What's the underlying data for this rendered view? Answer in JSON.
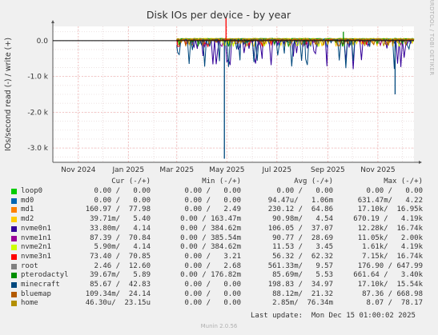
{
  "chart_data": {
    "type": "line",
    "title": "Disk IOs per device - by year",
    "ylabel": "IOs/second read (-) / write (+)",
    "xlabel": "",
    "x_ticks": [
      "Nov 2024",
      "Jan 2025",
      "Mar 2025",
      "May 2025",
      "Jul 2025",
      "Sep 2025",
      "Nov 2025"
    ],
    "y_ticks": [
      0.0,
      -1000,
      -2000,
      -3000
    ],
    "y_tick_labels": [
      "0.0",
      "-1.0 k",
      "-2.0 k",
      "-3.0 k"
    ],
    "ylim": [
      -3400,
      400
    ],
    "xlim": [
      "2024-10-01",
      "2025-12-15"
    ],
    "grid": true,
    "data_start": "2025-03-01",
    "notable_points": [
      {
        "x": "2025-04-28",
        "y": -3300,
        "label": "nvme0n1 min"
      },
      {
        "x": "2025-04-30",
        "y": 650,
        "label": "write spike"
      },
      {
        "x": "2025-09-20",
        "y": 250,
        "label": "pterodactyl write spike"
      },
      {
        "x": "2025-11-22",
        "y": -1500,
        "label": "late read spike"
      }
    ],
    "columns": [
      "Cur (-/+)",
      "Min (-/+)",
      "Avg (-/+)",
      "Max (-/+)"
    ],
    "series": [
      {
        "name": "loop0",
        "color": "#00cc00",
        "cur": "0.00 /   0.00",
        "min": "0.00 /   0.00",
        "avg": "0.00 /   0.00",
        "max": "0.00 /   0.00"
      },
      {
        "name": "md0",
        "color": "#0066b3",
        "cur": "0.00 /   0.00",
        "min": "0.00 /   0.00",
        "avg": "94.47u/   1.06m",
        "max": "631.47m/   4.22"
      },
      {
        "name": "md1",
        "color": "#ff8000",
        "cur": "160.97 /  77.98",
        "min": "0.00 /   2.49",
        "avg": "230.12 /  64.86",
        "max": "17.10k/  16.95k"
      },
      {
        "name": "md2",
        "color": "#ffcc00",
        "cur": "39.71m/   5.40",
        "min": "0.00 / 163.47m",
        "avg": "90.98m/   4.54",
        "max": "670.19 /   4.19k"
      },
      {
        "name": "nvme0n1",
        "color": "#330099",
        "cur": "33.80m/   4.14",
        "min": "0.00 / 384.62m",
        "avg": "106.05 /  37.07",
        "max": "12.28k/  16.74k"
      },
      {
        "name": "nvme1n1",
        "color": "#990099",
        "cur": "87.39 /  70.84",
        "min": "0.00 / 385.54m",
        "avg": "90.77 /  28.69",
        "max": "11.05k/   2.00k"
      },
      {
        "name": "nvme2n1",
        "color": "#ccff00",
        "cur": "5.90m/   4.14",
        "min": "0.00 / 384.62m",
        "avg": "11.53 /   3.45",
        "max": "1.61k/   4.19k"
      },
      {
        "name": "nvme3n1",
        "color": "#ff0000",
        "cur": "73.40 /  70.85",
        "min": "0.00 /   3.21",
        "avg": "56.32 /  62.32",
        "max": "7.15k/  16.74k"
      },
      {
        "name": "root",
        "color": "#808080",
        "cur": "2.46 /  12.60",
        "min": "0.00 /   2.68",
        "avg": "561.33m/   9.57",
        "max": "176.90 / 647.99"
      },
      {
        "name": "pterodactyl",
        "color": "#008f00",
        "cur": "39.67m/   5.89",
        "min": "0.00 / 176.82m",
        "avg": "85.69m/   5.53",
        "max": "661.64 /   3.40k"
      },
      {
        "name": "minecraft",
        "color": "#00487d",
        "cur": "85.67 /  42.83",
        "min": "0.00 /   0.00",
        "avg": "198.83 /  34.97",
        "max": "17.10k/  15.54k"
      },
      {
        "name": "bluemap",
        "color": "#b35a00",
        "cur": "109.34m/  24.14",
        "min": "0.00 /   0.00",
        "avg": "88.12m/  21.32",
        "max": "87.36 / 668.98"
      },
      {
        "name": "home",
        "color": "#b38f00",
        "cur": "46.30u/  23.15u",
        "min": "0.00 /   0.00",
        "avg": "2.85m/  76.34m",
        "max": "8.07 /  78.17"
      }
    ]
  },
  "footer": {
    "last_update": "Last update:  Mon Dec 15 01:00:02 2025",
    "munin": "Munin 2.0.56"
  },
  "side_text": "RRDTOOL / TOBI OETIKER"
}
